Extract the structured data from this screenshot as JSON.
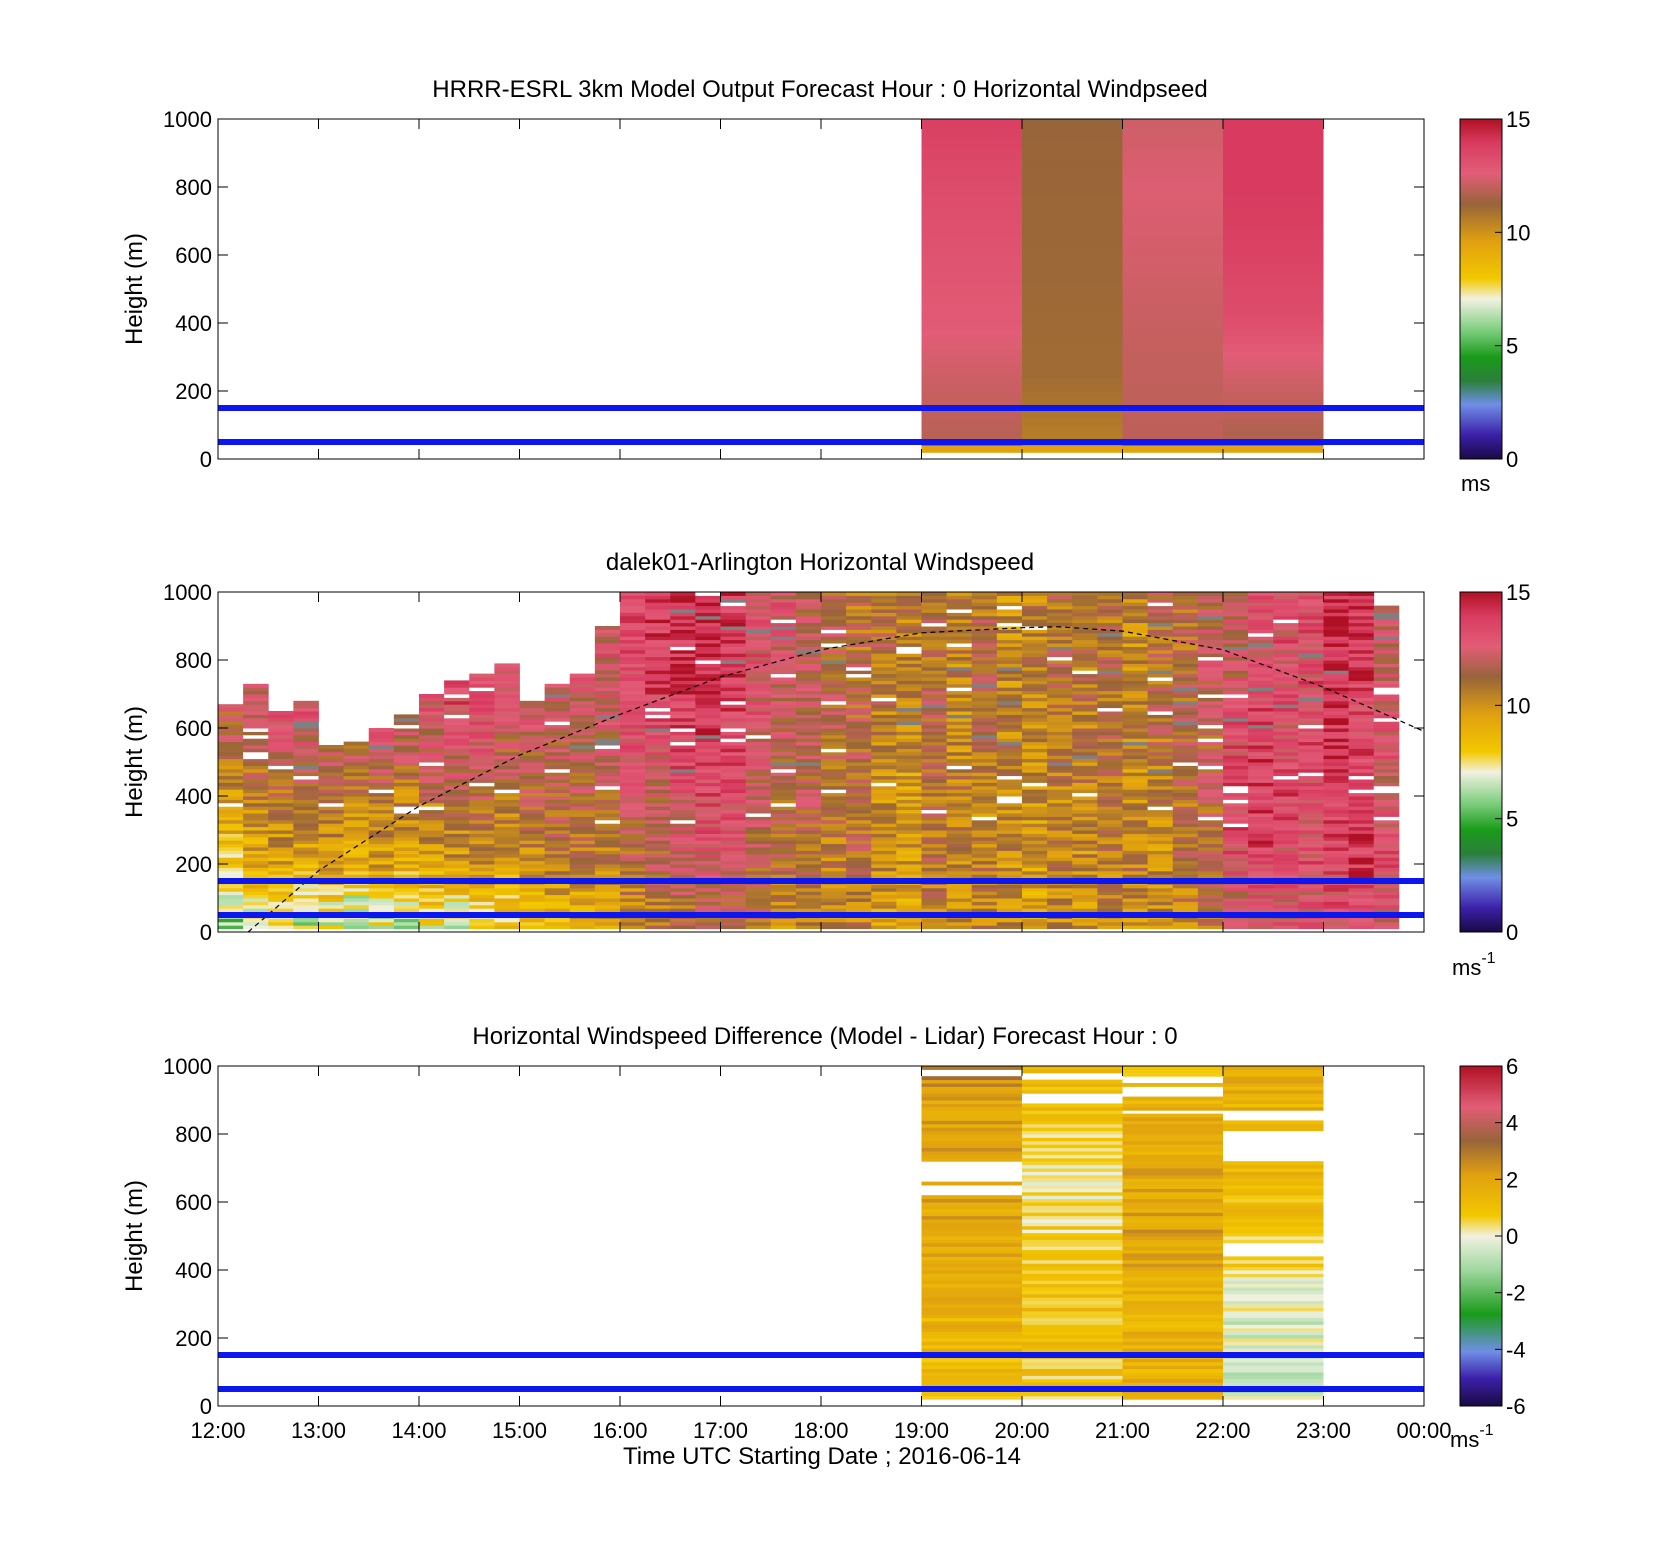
{
  "x_axis": {
    "ticks": [
      "12:00",
      "13:00",
      "14:00",
      "15:00",
      "16:00",
      "17:00",
      "18:00",
      "19:00",
      "20:00",
      "21:00",
      "22:00",
      "23:00",
      "00:00"
    ],
    "label": "Time UTC  Starting Date ; 2016-06-14"
  },
  "chart_data": [
    {
      "type": "heatmap",
      "title": "HRRR-ESRL 3km Model Output   Forecast Hour : 0 Horizontal Windpseed",
      "ylabel": "Height (m)",
      "ylim": [
        0,
        1000
      ],
      "xlim_hours": [
        12,
        24
      ],
      "y_ticks": [
        "0",
        "200",
        "400",
        "600",
        "800",
        "1000"
      ],
      "colorbar": {
        "ticks": [
          "0",
          "5",
          "10",
          "15"
        ],
        "unit": "ms",
        "unit_sup": "",
        "range": [
          0,
          15
        ]
      },
      "reference_lines_height_m": [
        150,
        50
      ],
      "columns": [
        {
          "x_start": "19:00",
          "x_end": "20:00",
          "profile": [
            [
              30,
              9.5
            ],
            [
              60,
              11.8
            ],
            [
              250,
              12.2
            ],
            [
              400,
              12.7
            ],
            [
              600,
              13.0
            ],
            [
              800,
              13.3
            ],
            [
              1000,
              13.8
            ]
          ]
        },
        {
          "x_start": "20:00",
          "x_end": "21:00",
          "profile": [
            [
              30,
              9.5
            ],
            [
              60,
              10.5
            ],
            [
              250,
              11.0
            ],
            [
              600,
              11.1
            ],
            [
              1000,
              11.2
            ]
          ]
        },
        {
          "x_start": "21:00",
          "x_end": "22:00",
          "profile": [
            [
              30,
              9.5
            ],
            [
              60,
              11.9
            ],
            [
              300,
              12.0
            ],
            [
              800,
              12.5
            ],
            [
              1000,
              12.2
            ]
          ]
        },
        {
          "x_start": "22:00",
          "x_end": "23:00",
          "profile": [
            [
              30,
              9.5
            ],
            [
              60,
              11.6
            ],
            [
              250,
              12.3
            ],
            [
              400,
              13.2
            ],
            [
              600,
              13.7
            ],
            [
              800,
              14.0
            ],
            [
              1000,
              14.0
            ]
          ]
        }
      ]
    },
    {
      "type": "heatmap",
      "title": "dalek01-Arlington  Horizontal Windspeed",
      "ylabel": "Height (m)",
      "ylim": [
        0,
        1000
      ],
      "xlim_hours": [
        12,
        24
      ],
      "y_ticks": [
        "0",
        "200",
        "400",
        "600",
        "800",
        "1000"
      ],
      "colorbar": {
        "ticks": [
          "0",
          "5",
          "10",
          "15"
        ],
        "unit": "ms",
        "unit_sup": "-1",
        "range": [
          0,
          15
        ]
      },
      "reference_lines_height_m": [
        150,
        50
      ],
      "dashed_curve": {
        "x_hours": [
          12.3,
          13,
          14,
          15,
          16,
          17,
          18,
          19,
          20,
          20.35,
          21,
          22,
          23,
          24
        ],
        "height_m": [
          0,
          180,
          370,
          520,
          640,
          750,
          830,
          880,
          895,
          898,
          885,
          830,
          720,
          590
        ]
      },
      "columns": [
        {
          "x_start": "12:00",
          "x_end": "12:15",
          "top_m": 670,
          "speeds": [
            6,
            8,
            10,
            11.5,
            12.5
          ]
        },
        {
          "x_start": "12:15",
          "x_end": "12:30",
          "top_m": 730,
          "speeds": [
            7,
            9,
            10.5,
            12,
            13
          ]
        },
        {
          "x_start": "12:30",
          "x_end": "12:45",
          "top_m": 650,
          "speeds": [
            7,
            9.5,
            11,
            12.5,
            13
          ]
        },
        {
          "x_start": "12:45",
          "x_end": "13:00",
          "top_m": 680,
          "speeds": [
            6.5,
            9,
            11,
            12.5,
            13.5
          ]
        },
        {
          "x_start": "13:00",
          "x_end": "13:15",
          "top_m": 550,
          "speeds": [
            7,
            9.5,
            11,
            12,
            13
          ]
        },
        {
          "x_start": "13:15",
          "x_end": "13:30",
          "top_m": 560,
          "speeds": [
            6,
            9,
            10.5,
            12,
            12.5
          ]
        },
        {
          "x_start": "13:30",
          "x_end": "13:45",
          "top_m": 600,
          "speeds": [
            7,
            9.5,
            11,
            12.5,
            13
          ]
        },
        {
          "x_start": "13:45",
          "x_end": "14:00",
          "top_m": 640,
          "speeds": [
            6.5,
            9,
            10.5,
            12,
            13
          ]
        },
        {
          "x_start": "14:00",
          "x_end": "14:15",
          "top_m": 700,
          "speeds": [
            7.5,
            9.5,
            11,
            12.5,
            13.5
          ]
        },
        {
          "x_start": "14:15",
          "x_end": "14:30",
          "top_m": 740,
          "speeds": [
            7,
            9.5,
            11.5,
            13,
            14
          ]
        },
        {
          "x_start": "14:30",
          "x_end": "14:45",
          "top_m": 760,
          "speeds": [
            8,
            10,
            11.5,
            13,
            13.5
          ]
        },
        {
          "x_start": "14:45",
          "x_end": "15:00",
          "top_m": 790,
          "speeds": [
            8,
            9.5,
            11,
            12,
            12
          ]
        },
        {
          "x_start": "15:00",
          "x_end": "15:15",
          "top_m": 680,
          "speeds": [
            8.5,
            10,
            11.5,
            12,
            12.5
          ]
        },
        {
          "x_start": "15:15",
          "x_end": "15:30",
          "top_m": 730,
          "speeds": [
            9,
            10.5,
            11.5,
            12,
            12.5
          ]
        },
        {
          "x_start": "15:30",
          "x_end": "15:45",
          "top_m": 760,
          "speeds": [
            9,
            10.5,
            11.5,
            12,
            12.5
          ]
        },
        {
          "x_start": "15:45",
          "x_end": "16:00",
          "top_m": 900,
          "speeds": [
            9.5,
            10.5,
            11.5,
            12,
            12.5
          ]
        },
        {
          "x_start": "16:00",
          "x_end": "16:15",
          "top_m": 1000,
          "speeds": [
            10,
            11,
            12,
            13,
            13.5
          ]
        },
        {
          "x_start": "16:15",
          "x_end": "16:30",
          "top_m": 1000,
          "speeds": [
            10.5,
            11.5,
            12,
            13,
            14
          ]
        },
        {
          "x_start": "16:30",
          "x_end": "16:45",
          "top_m": 1000,
          "speeds": [
            11,
            12,
            13,
            13.5,
            14
          ]
        },
        {
          "x_start": "16:45",
          "x_end": "17:00",
          "top_m": 1000,
          "speeds": [
            11,
            12.5,
            13.5,
            14,
            14.5
          ]
        },
        {
          "x_start": "17:00",
          "x_end": "17:15",
          "top_m": 1000,
          "speeds": [
            11,
            12.5,
            13.5,
            13.5,
            14
          ]
        },
        {
          "x_start": "17:15",
          "x_end": "17:30",
          "top_m": 1000,
          "speeds": [
            11,
            11.5,
            12,
            12.5,
            13
          ]
        },
        {
          "x_start": "17:30",
          "x_end": "17:45",
          "top_m": 1000,
          "speeds": [
            10.5,
            11,
            11.5,
            12,
            12.5
          ]
        },
        {
          "x_start": "17:45",
          "x_end": "18:00",
          "top_m": 1000,
          "speeds": [
            10.5,
            11,
            11.5,
            11.5,
            12
          ]
        },
        {
          "x_start": "18:00",
          "x_end": "18:15",
          "top_m": 1000,
          "speeds": [
            10,
            10.5,
            11,
            11.5,
            11.5
          ]
        },
        {
          "x_start": "18:15",
          "x_end": "18:30",
          "top_m": 1000,
          "speeds": [
            10.5,
            11,
            11,
            11.5,
            11
          ]
        },
        {
          "x_start": "18:30",
          "x_end": "18:45",
          "top_m": 1000,
          "speeds": [
            9.5,
            10,
            10,
            10.5,
            11
          ]
        },
        {
          "x_start": "18:45",
          "x_end": "19:00",
          "top_m": 1000,
          "speeds": [
            9,
            9.5,
            9.5,
            10,
            10.5
          ]
        },
        {
          "x_start": "19:00",
          "x_end": "19:15",
          "top_m": 1000,
          "speeds": [
            10.5,
            11,
            11,
            11.5,
            11
          ]
        },
        {
          "x_start": "19:15",
          "x_end": "19:30",
          "top_m": 1000,
          "speeds": [
            10,
            10.5,
            10.5,
            10,
            10.5
          ]
        },
        {
          "x_start": "19:30",
          "x_end": "19:45",
          "top_m": 1000,
          "speeds": [
            10.5,
            10.5,
            10.5,
            11,
            11
          ]
        },
        {
          "x_start": "19:45",
          "x_end": "20:00",
          "top_m": 1000,
          "speeds": [
            10,
            10,
            10.5,
            10.5,
            10
          ]
        },
        {
          "x_start": "20:00",
          "x_end": "20:15",
          "top_m": 1000,
          "speeds": [
            9.5,
            9.5,
            10,
            10,
            10.5
          ]
        },
        {
          "x_start": "20:15",
          "x_end": "20:30",
          "top_m": 1000,
          "speeds": [
            10,
            10.5,
            10.5,
            11,
            11
          ]
        },
        {
          "x_start": "20:30",
          "x_end": "20:45",
          "top_m": 1000,
          "speeds": [
            10,
            10,
            10.5,
            10.5,
            11
          ]
        },
        {
          "x_start": "20:45",
          "x_end": "21:00",
          "top_m": 1000,
          "speeds": [
            10.5,
            10.5,
            11,
            11,
            11
          ]
        },
        {
          "x_start": "21:00",
          "x_end": "21:15",
          "top_m": 1000,
          "speeds": [
            10,
            10.5,
            10,
            10.5,
            10
          ]
        },
        {
          "x_start": "21:15",
          "x_end": "21:30",
          "top_m": 1000,
          "speeds": [
            10,
            10,
            10.5,
            11,
            11
          ]
        },
        {
          "x_start": "21:30",
          "x_end": "21:45",
          "top_m": 1000,
          "speeds": [
            10.5,
            11,
            11,
            11.5,
            11
          ]
        },
        {
          "x_start": "21:45",
          "x_end": "22:00",
          "top_m": 1000,
          "speeds": [
            11,
            11,
            11.5,
            11.5,
            12
          ]
        },
        {
          "x_start": "22:00",
          "x_end": "22:15",
          "top_m": 1000,
          "speeds": [
            12,
            13,
            13.5,
            13,
            12
          ]
        },
        {
          "x_start": "22:15",
          "x_end": "22:30",
          "top_m": 1000,
          "speeds": [
            12.5,
            13.5,
            14,
            13.5,
            13
          ]
        },
        {
          "x_start": "22:30",
          "x_end": "22:45",
          "top_m": 1000,
          "speeds": [
            12.5,
            13,
            13.5,
            13,
            13
          ]
        },
        {
          "x_start": "22:45",
          "x_end": "23:00",
          "top_m": 1000,
          "speeds": [
            12.5,
            13,
            13,
            13.5,
            13
          ]
        },
        {
          "x_start": "23:00",
          "x_end": "23:15",
          "top_m": 1000,
          "speeds": [
            13,
            13.5,
            14,
            14,
            14.5
          ]
        },
        {
          "x_start": "23:15",
          "x_end": "23:30",
          "top_m": 1000,
          "speeds": [
            13,
            14,
            14,
            13.5,
            14
          ]
        },
        {
          "x_start": "23:30",
          "x_end": "23:45",
          "top_m": 960,
          "speeds": [
            12.5,
            13,
            12.5,
            12.5,
            12
          ]
        }
      ],
      "speeds_at_height_m": [
        50,
        200,
        400,
        600,
        800
      ]
    },
    {
      "type": "heatmap",
      "title": "Horizontal Windspeed Difference (Model - Lidar) Forecast Hour : 0",
      "ylabel": "Height (m)",
      "ylim": [
        0,
        1000
      ],
      "xlim_hours": [
        12,
        24
      ],
      "y_ticks": [
        "0",
        "200",
        "400",
        "600",
        "800",
        "1000"
      ],
      "colorbar": {
        "ticks": [
          "-6",
          "-4",
          "-2",
          "0",
          "2",
          "4",
          "6"
        ],
        "unit": "ms",
        "unit_sup": "-1",
        "range": [
          -6,
          6
        ]
      },
      "reference_lines_height_m": [
        150,
        50
      ],
      "columns": [
        {
          "x_start": "19:00",
          "x_end": "20:00",
          "profile": [
            [
              30,
              1.2
            ],
            [
              300,
              1.5
            ],
            [
              600,
              2.0
            ],
            [
              900,
              2.2
            ],
            [
              1000,
              2.8
            ]
          ],
          "gaps_m": [
            [
              650,
              620
            ],
            [
              720,
              660
            ],
            [
              990,
              970
            ]
          ]
        },
        {
          "x_start": "20:00",
          "x_end": "21:00",
          "profile": [
            [
              30,
              0.8
            ],
            [
              300,
              1.0
            ],
            [
              500,
              0.5
            ],
            [
              700,
              0.3
            ],
            [
              900,
              1.2
            ],
            [
              1000,
              1.5
            ]
          ],
          "gaps_m": [
            [
              920,
              890
            ],
            [
              980,
              960
            ]
          ]
        },
        {
          "x_start": "21:00",
          "x_end": "22:00",
          "profile": [
            [
              30,
              1.5
            ],
            [
              300,
              1.6
            ],
            [
              500,
              2.0
            ],
            [
              800,
              1.8
            ],
            [
              1000,
              1.2
            ]
          ],
          "gaps_m": [
            [
              870,
              860
            ],
            [
              940,
              910
            ],
            [
              970,
              950
            ]
          ]
        },
        {
          "x_start": "22:00",
          "x_end": "23:00",
          "profile": [
            [
              40,
              -0.5
            ],
            [
              300,
              -0.2
            ],
            [
              450,
              0.6
            ],
            [
              700,
              1.2
            ],
            [
              1000,
              1.8
            ]
          ],
          "gaps_m": [
            [
              480,
              440
            ],
            [
              810,
              720
            ],
            [
              870,
              840
            ]
          ]
        }
      ]
    }
  ]
}
